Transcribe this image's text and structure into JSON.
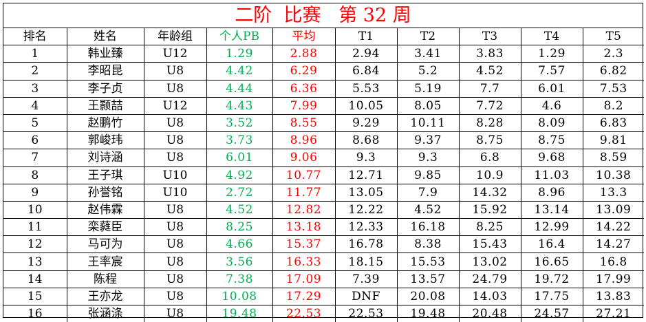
{
  "title": "二阶  比赛   第 32 周",
  "headers": [
    "排名",
    "姓名",
    "年龄组",
    "个人PB",
    "平均",
    "T1",
    "T2",
    "T3",
    "T4",
    "T5"
  ],
  "colors": {
    "title": "#ff0000",
    "pb": "#00b050",
    "avg": "#ff0000"
  },
  "rows": [
    {
      "rank": "1",
      "name": "韩业臻",
      "group": "U12",
      "pb": "1.29",
      "avg": "2.88",
      "t": [
        "2.94",
        "3.41",
        "3.83",
        "1.29",
        "2.3"
      ]
    },
    {
      "rank": "2",
      "name": "李昭昆",
      "group": "U8",
      "pb": "4.42",
      "avg": "6.29",
      "t": [
        "6.84",
        "5.2",
        "4.52",
        "7.57",
        "6.82"
      ]
    },
    {
      "rank": "3",
      "name": "李子贞",
      "group": "U8",
      "pb": "4.44",
      "avg": "6.36",
      "t": [
        "5.53",
        "5.19",
        "7.7",
        "6.01",
        "7.53"
      ]
    },
    {
      "rank": "4",
      "name": "王颢喆",
      "group": "U12",
      "pb": "4.43",
      "avg": "7.99",
      "t": [
        "10.05",
        "8.05",
        "7.72",
        "4.6",
        "8.2"
      ]
    },
    {
      "rank": "5",
      "name": "赵鹏竹",
      "group": "U8",
      "pb": "3.52",
      "avg": "8.55",
      "t": [
        "9.29",
        "10.11",
        "8.28",
        "8.09",
        "6.83"
      ]
    },
    {
      "rank": "6",
      "name": "郭峻玮",
      "group": "U8",
      "pb": "3.73",
      "avg": "8.96",
      "t": [
        "8.68",
        "9.37",
        "8.75",
        "8.75",
        "9.81"
      ]
    },
    {
      "rank": "7",
      "name": "刘诗涵",
      "group": "U8",
      "pb": "6.01",
      "avg": "9.06",
      "t": [
        "9.3",
        "9.3",
        "6.8",
        "9.68",
        "8.59"
      ]
    },
    {
      "rank": "8",
      "name": "王子琪",
      "group": "U10",
      "pb": "4.92",
      "avg": "10.77",
      "t": [
        "12.71",
        "9.85",
        "10.9",
        "11.03",
        "10.38"
      ]
    },
    {
      "rank": "9",
      "name": "孙誉铭",
      "group": "U10",
      "pb": "2.72",
      "avg": "11.77",
      "t": [
        "13.05",
        "7.9",
        "14.32",
        "8.96",
        "13.3"
      ]
    },
    {
      "rank": "10",
      "name": "赵伟霖",
      "group": "U8",
      "pb": "4.52",
      "avg": "12.82",
      "t": [
        "12.22",
        "4.52",
        "15.92",
        "13.14",
        "13.09"
      ]
    },
    {
      "rank": "11",
      "name": "栾蕤臣",
      "group": "U8",
      "pb": "8.25",
      "avg": "13.18",
      "t": [
        "12.33",
        "16.18",
        "8.25",
        "12.99",
        "14.22"
      ]
    },
    {
      "rank": "12",
      "name": "马可为",
      "group": "U8",
      "pb": "4.66",
      "avg": "15.37",
      "t": [
        "16.78",
        "8.38",
        "15.43",
        "16.4",
        "14.27"
      ]
    },
    {
      "rank": "13",
      "name": "王率宸",
      "group": "U8",
      "pb": "3.56",
      "avg": "16.33",
      "t": [
        "18.15",
        "15.53",
        "13.02",
        "16.65",
        "16.8"
      ]
    },
    {
      "rank": "14",
      "name": "陈程",
      "group": "U8",
      "pb": "7.38",
      "avg": "17.09",
      "t": [
        "7.39",
        "13.57",
        "24.79",
        "19.72",
        "17.99"
      ]
    },
    {
      "rank": "15",
      "name": "王亦龙",
      "group": "U8",
      "pb": "10.08",
      "avg": "17.29",
      "t": [
        "DNF",
        "20.08",
        "14.03",
        "17.75",
        "13.83"
      ]
    },
    {
      "rank": "16",
      "name": "张涵涤",
      "group": "U8",
      "pb": "19.48",
      "avg": "22.53",
      "t": [
        "22.53",
        "19.48",
        "20.48",
        "24.57",
        "27.21"
      ]
    }
  ]
}
